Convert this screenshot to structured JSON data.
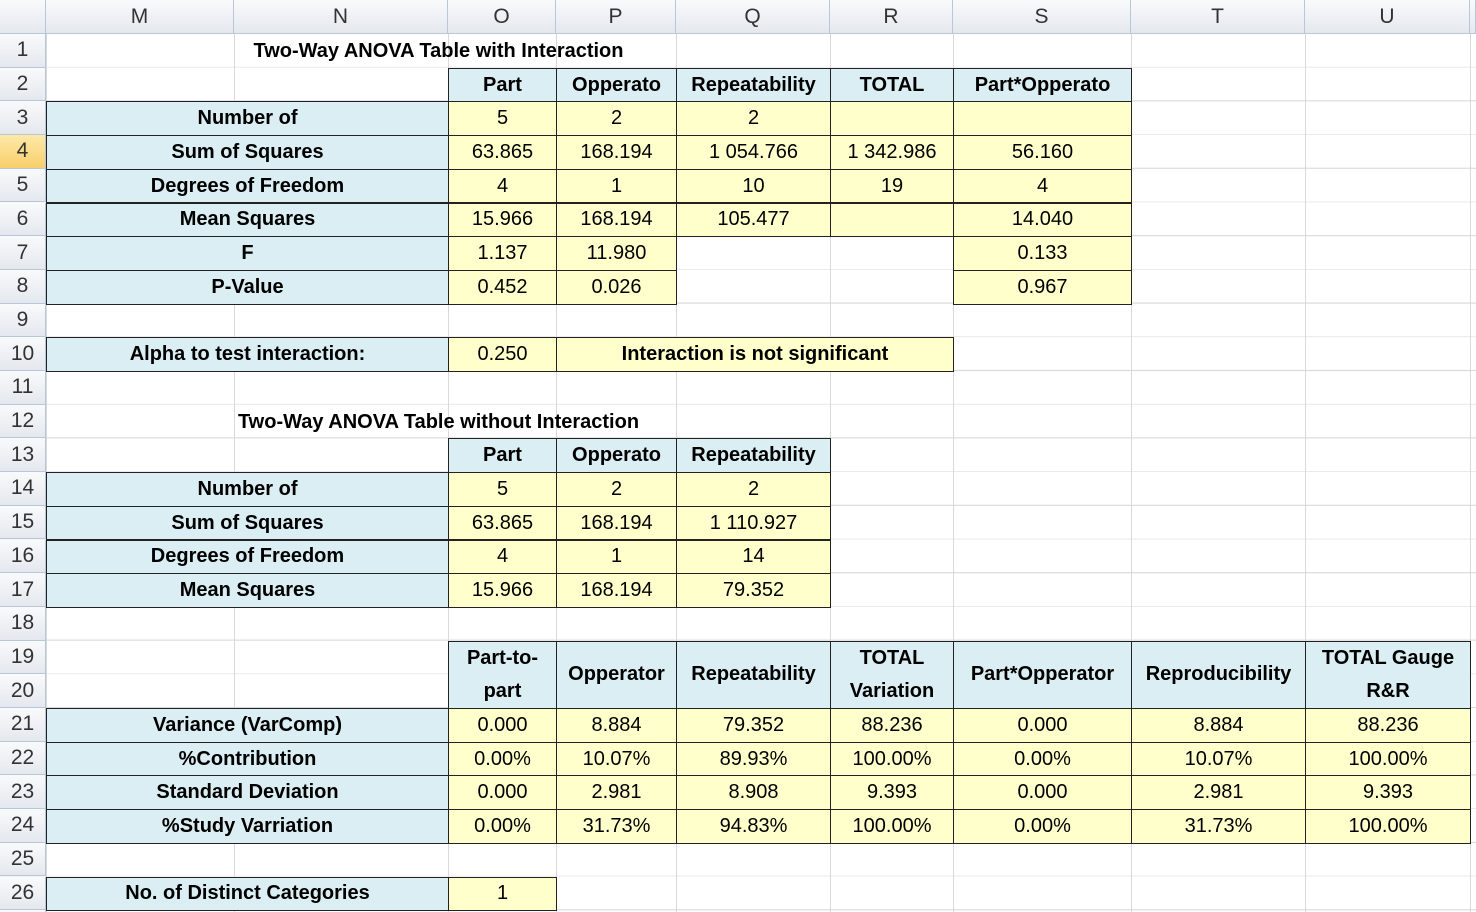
{
  "sheet": {
    "columns": [
      "M",
      "N",
      "O",
      "P",
      "Q",
      "R",
      "S",
      "T",
      "U"
    ],
    "rows": [
      {
        "number": 1,
        "cells": {
          "M": "Two-Way ANOVA Table with Interaction"
        }
      },
      {
        "number": 2,
        "cells": {
          "O": "Part",
          "P": "Opperato",
          "Q": "Repeatability",
          "R": "TOTAL",
          "S": "Part*Opperato"
        }
      },
      {
        "number": 3,
        "cells": {
          "M": "Number of",
          "O": "5",
          "P": "2",
          "Q": "2"
        }
      },
      {
        "number": 4,
        "cells": {
          "M": "Sum of Squares",
          "O": "63.865",
          "P": "168.194",
          "Q": "1 054.766",
          "R": "1 342.986",
          "S": "56.160"
        }
      },
      {
        "number": 5,
        "cells": {
          "M": "Degrees of Freedom",
          "O": "4",
          "P": "1",
          "Q": "10",
          "R": "19",
          "S": "4"
        }
      },
      {
        "number": 6,
        "cells": {
          "M": "Mean Squares",
          "O": "15.966",
          "P": "168.194",
          "Q": "105.477",
          "S": "14.040"
        }
      },
      {
        "number": 7,
        "cells": {
          "M": "F",
          "O": "1.137",
          "P": "11.980",
          "S": "0.133"
        }
      },
      {
        "number": 8,
        "cells": {
          "M": "P-Value",
          "O": "0.452",
          "P": "0.026",
          "S": "0.967"
        }
      },
      {
        "number": 9,
        "cells": {}
      },
      {
        "number": 10,
        "cells": {
          "M": "Alpha to test interaction:",
          "O": "0.250",
          "P": "Interaction is not significant"
        }
      },
      {
        "number": 11,
        "cells": {}
      },
      {
        "number": 12,
        "cells": {
          "M": "Two-Way ANOVA Table without Interaction"
        }
      },
      {
        "number": 13,
        "cells": {
          "O": "Part",
          "P": "Opperato",
          "Q": "Repeatability"
        }
      },
      {
        "number": 14,
        "cells": {
          "M": "Number of",
          "O": "5",
          "P": "2",
          "Q": "2"
        }
      },
      {
        "number": 15,
        "cells": {
          "M": "Sum of Squares",
          "O": "63.865",
          "P": "168.194",
          "Q": "1 110.927"
        }
      },
      {
        "number": 16,
        "cells": {
          "M": "Degrees of Freedom",
          "O": "4",
          "P": "1",
          "Q": "14"
        }
      },
      {
        "number": 17,
        "cells": {
          "M": "Mean Squares",
          "O": "15.966",
          "P": "168.194",
          "Q": "79.352"
        }
      },
      {
        "number": 18,
        "cells": {}
      },
      {
        "number": 19,
        "cells": {
          "O": "Part-to-part",
          "P": "Opperator",
          "Q": "Repeatability",
          "R": "TOTAL Variation",
          "S": "Part*Opperator",
          "T": "Reproducibility",
          "U": "TOTAL Gauge R&R"
        }
      },
      {
        "number": 20,
        "cells": {}
      },
      {
        "number": 21,
        "cells": {
          "M": "Variance (VarComp)",
          "O": "0.000",
          "P": "8.884",
          "Q": "79.352",
          "R": "88.236",
          "S": "0.000",
          "T": "8.884",
          "U": "88.236"
        }
      },
      {
        "number": 22,
        "cells": {
          "M": "%Contribution",
          "O": "0.00%",
          "P": "10.07%",
          "Q": "89.93%",
          "R": "100.00%",
          "S": "0.00%",
          "T": "10.07%",
          "U": "100.00%"
        }
      },
      {
        "number": 23,
        "cells": {
          "M": "Standard Deviation",
          "O": "0.000",
          "P": "2.981",
          "Q": "8.908",
          "R": "9.393",
          "S": "0.000",
          "T": "2.981",
          "U": "9.393"
        }
      },
      {
        "number": 24,
        "cells": {
          "M": "%Study Varriation",
          "O": "0.00%",
          "P": "31.73%",
          "Q": "94.83%",
          "R": "100.00%",
          "S": "0.00%",
          "T": "31.73%",
          "U": "100.00%"
        }
      },
      {
        "number": 25,
        "cells": {}
      },
      {
        "number": 26,
        "cells": {
          "M": "No. of Distinct Categories",
          "O": "1"
        }
      }
    ]
  }
}
